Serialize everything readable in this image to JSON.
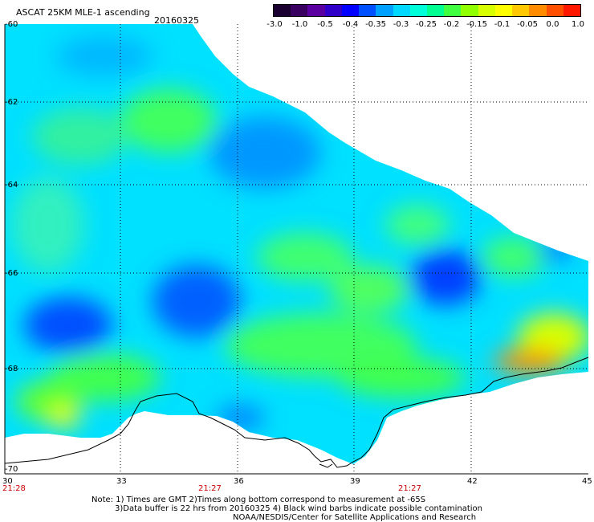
{
  "header": {
    "title": "ASCAT 25KM MLE-1 ascending",
    "date": "20160325"
  },
  "colorbar": {
    "labels": [
      "-3.0",
      "-1.0",
      "-0.5",
      "-0.4",
      "-0.35",
      "-0.3",
      "-0.25",
      "-0.2",
      "-0.15",
      "-0.1",
      "-0.05",
      "0.0",
      "1.0"
    ],
    "colors": [
      "#1a0030",
      "#3a0060",
      "#5a00a0",
      "#3000c8",
      "#0000ff",
      "#0050ff",
      "#00a0ff",
      "#00d8ff",
      "#00ffd8",
      "#00ff90",
      "#40ff40",
      "#90ff00",
      "#d8ff00",
      "#ffff00",
      "#ffc800",
      "#ff8c00",
      "#ff5000",
      "#ff1800"
    ]
  },
  "axes": {
    "lat_labels": [
      "-60",
      "-62",
      "-64",
      "-66",
      "-68",
      "-70"
    ],
    "lon_labels": [
      "30",
      "33",
      "36",
      "39",
      "42",
      "45"
    ],
    "time_labels": [
      "21:28",
      "21:27",
      "21:27"
    ]
  },
  "notes": {
    "line1": "Note: 1) Times are GMT 2)Times along bottom correspond to measurement at -65S",
    "line2": "3)Data buffer is 22 hrs from 20160325 4) Black wind barbs indicate possible contamination",
    "line3": "NOAA/NESDIS/Center for Satellite Applications and Research"
  },
  "palette": {
    "background": "#ffffff",
    "field_base": "#00e8ff",
    "coastline": "#000000",
    "time_text": "#cc0000"
  }
}
